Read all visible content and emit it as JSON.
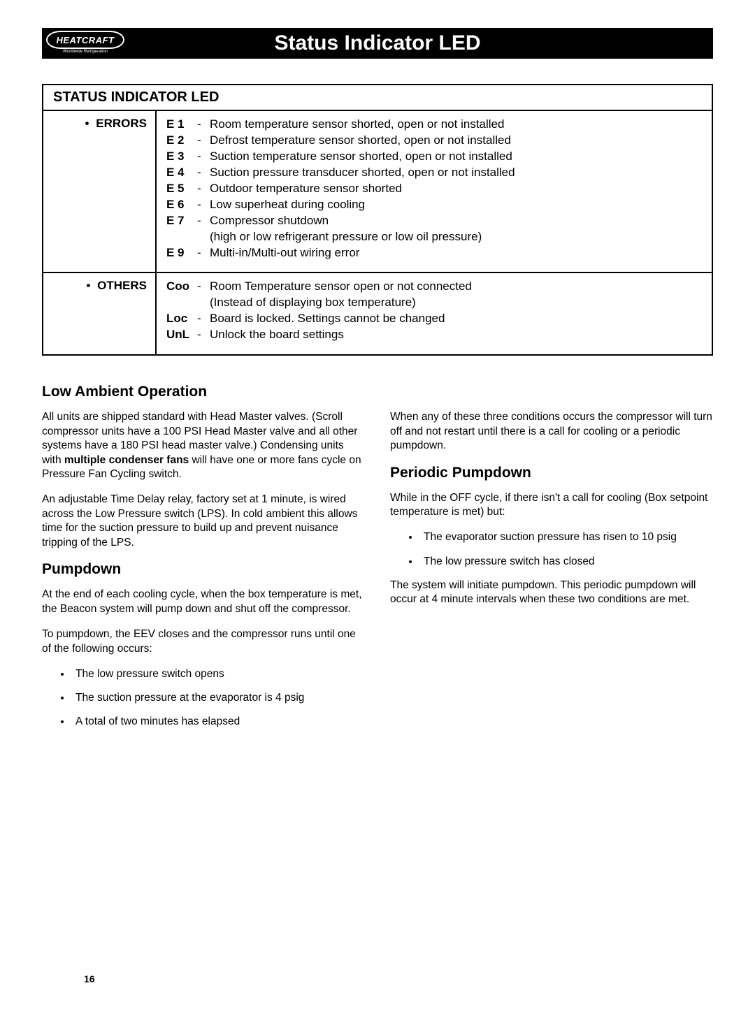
{
  "logo": {
    "brand": "HEATCRAFT",
    "tagline": "Worldwide Refrigeration"
  },
  "title_bar": "Status Indicator LED",
  "table": {
    "header": "STATUS INDICATOR LED",
    "rows": [
      {
        "label": "ERRORS",
        "codes": [
          {
            "key": "E 1",
            "desc": "Room temperature sensor shorted, open or not installed"
          },
          {
            "key": "E 2",
            "desc": "Defrost temperature sensor shorted, open or not installed"
          },
          {
            "key": "E 3",
            "desc": "Suction temperature sensor shorted, open or not installed"
          },
          {
            "key": "E 4",
            "desc": "Suction pressure transducer shorted, open or not installed"
          },
          {
            "key": "E 5",
            "desc": "Outdoor temperature sensor shorted"
          },
          {
            "key": "E 6",
            "desc": "Low superheat during cooling"
          },
          {
            "key": "E 7",
            "desc": "Compressor shutdown",
            "sub": "(high or low refrigerant pressure or low oil pressure)"
          },
          {
            "key": "E 9",
            "desc": "Multi-in/Multi-out wiring error"
          }
        ]
      },
      {
        "label": "OTHERS",
        "codes": [
          {
            "key": "Coo",
            "desc": "Room Temperature sensor open or not connected",
            "sub": "(Instead of displaying box temperature)"
          },
          {
            "key": "Loc",
            "desc": "Board is locked. Settings cannot be changed"
          },
          {
            "key": "UnL",
            "desc": "Unlock the board settings"
          }
        ]
      }
    ]
  },
  "left_col": {
    "h1": "Low Ambient Operation",
    "p1a": "All units are shipped standard with Head Master valves. (Scroll compressor units have a 100 PSI Head Master valve and all other systems have a 180 PSI head master valve.) Condensing units with ",
    "p1b_bold": "multiple condenser fans",
    "p1c": " will have one or more fans cycle on Pressure Fan Cycling switch.",
    "p2": "An adjustable Time Delay relay, factory set at 1 minute, is wired across the Low Pressure switch (LPS). In cold ambient this allows time for the suction pressure to build up and prevent nuisance tripping of the LPS.",
    "h2": "Pumpdown",
    "p3": "At the end of each cooling cycle, when the box temperature is met, the Beacon system will pump down and shut off the compressor.",
    "p4": "To pumpdown, the EEV closes and the compressor runs until one of the following occurs:",
    "bullets": [
      "The low pressure switch opens",
      "The suction pressure at the evaporator is 4 psig",
      "A total of two minutes has elapsed"
    ]
  },
  "right_col": {
    "p1": "When any of these three conditions occurs the compressor will turn off and not restart until there is a call for cooling or a periodic pumpdown.",
    "h1": "Periodic Pumpdown",
    "p2": "While in the OFF cycle, if there isn't a call for cooling (Box setpoint temperature is met) but:",
    "bullets": [
      "The evaporator suction pressure has risen to 10 psig",
      "The low pressure switch has closed"
    ],
    "p3": "The system will initiate pumpdown. This periodic pumpdown will occur at 4 minute intervals when these two conditions are met."
  },
  "page_number": "16"
}
